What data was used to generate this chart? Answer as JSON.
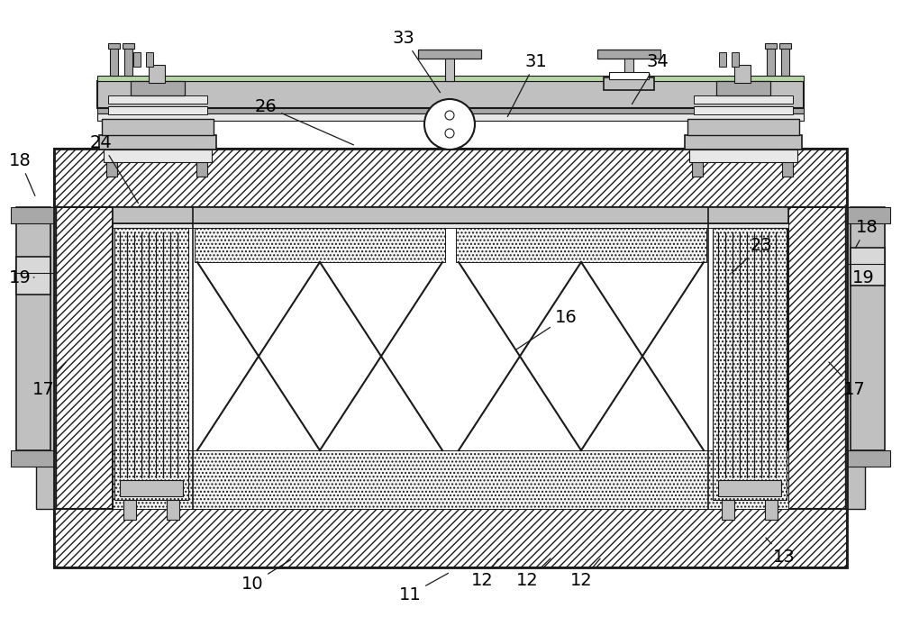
{
  "bg": "#ffffff",
  "lc": "#1a1a1a",
  "gray1": "#d8d8d8",
  "gray2": "#c0c0c0",
  "gray3": "#a8a8a8",
  "gray4": "#e8e8e8",
  "green": "#b8d4a8",
  "hatch_diag": "////",
  "hatch_dot": "....",
  "fig_w": 10.0,
  "fig_h": 6.95,
  "dpi": 100
}
